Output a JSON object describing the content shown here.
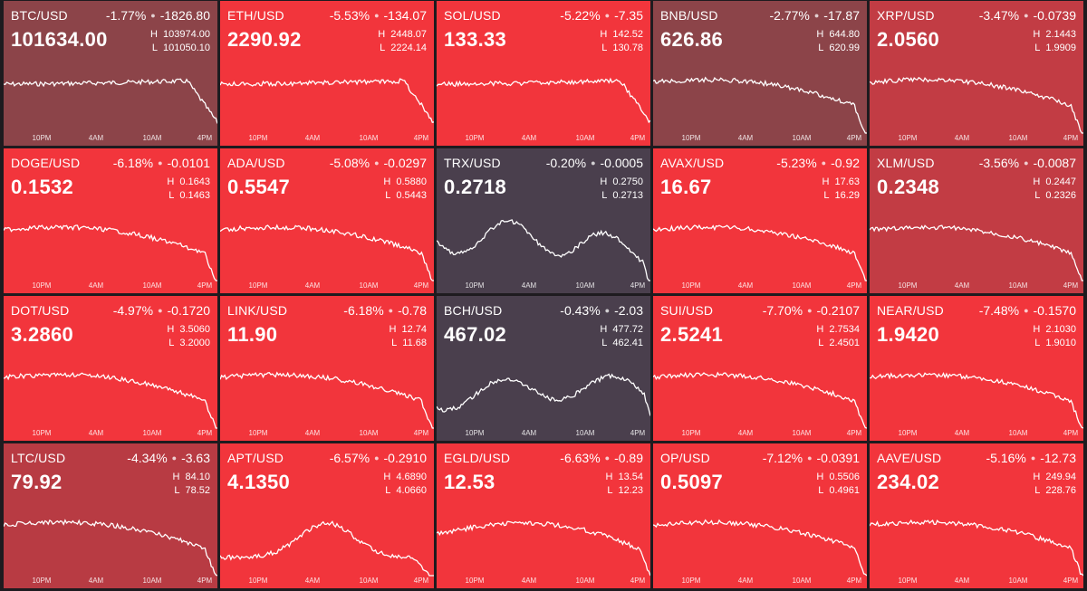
{
  "time_labels": [
    "10PM",
    "4AM",
    "10AM",
    "4PM"
  ],
  "tiles": [
    {
      "symbol": "BTC/USD",
      "pct": "-1.77%",
      "delta": "-1826.80",
      "price": "101634.00",
      "high": "103974.00",
      "low": "101050.10",
      "bg": "#8c4449",
      "trend": "late_drop"
    },
    {
      "symbol": "ETH/USD",
      "pct": "-5.53%",
      "delta": "-134.07",
      "price": "2290.92",
      "high": "2448.07",
      "low": "2224.14",
      "bg": "#f2353c",
      "trend": "late_drop"
    },
    {
      "symbol": "SOL/USD",
      "pct": "-5.22%",
      "delta": "-7.35",
      "price": "133.33",
      "high": "142.52",
      "low": "130.78",
      "bg": "#f2353c",
      "trend": "late_drop"
    },
    {
      "symbol": "BNB/USD",
      "pct": "-2.77%",
      "delta": "-17.87",
      "price": "626.86",
      "high": "644.80",
      "low": "620.99",
      "bg": "#8c4449",
      "trend": "decline"
    },
    {
      "symbol": "XRP/USD",
      "pct": "-3.47%",
      "delta": "-0.0739",
      "price": "2.0560",
      "high": "2.1443",
      "low": "1.9909",
      "bg": "#c23c44",
      "trend": "decline"
    },
    {
      "symbol": "DOGE/USD",
      "pct": "-6.18%",
      "delta": "-0.0101",
      "price": "0.1532",
      "high": "0.1643",
      "low": "0.1463",
      "bg": "#f2353c",
      "trend": "decline"
    },
    {
      "symbol": "ADA/USD",
      "pct": "-5.08%",
      "delta": "-0.0297",
      "price": "0.5547",
      "high": "0.5880",
      "low": "0.5443",
      "bg": "#f2353c",
      "trend": "decline"
    },
    {
      "symbol": "TRX/USD",
      "pct": "-0.20%",
      "delta": "-0.0005",
      "price": "0.2718",
      "high": "0.2750",
      "low": "0.2713",
      "bg": "#4a3f4d",
      "trend": "wave"
    },
    {
      "symbol": "AVAX/USD",
      "pct": "-5.23%",
      "delta": "-0.92",
      "price": "16.67",
      "high": "17.63",
      "low": "16.29",
      "bg": "#f2353c",
      "trend": "decline"
    },
    {
      "symbol": "XLM/USD",
      "pct": "-3.56%",
      "delta": "-0.0087",
      "price": "0.2348",
      "high": "0.2447",
      "low": "0.2326",
      "bg": "#c23c44",
      "trend": "decline"
    },
    {
      "symbol": "DOT/USD",
      "pct": "-4.97%",
      "delta": "-0.1720",
      "price": "3.2860",
      "high": "3.5060",
      "low": "3.2000",
      "bg": "#f2353c",
      "trend": "decline"
    },
    {
      "symbol": "LINK/USD",
      "pct": "-6.18%",
      "delta": "-0.78",
      "price": "11.90",
      "high": "12.74",
      "low": "11.68",
      "bg": "#f2353c",
      "trend": "decline"
    },
    {
      "symbol": "BCH/USD",
      "pct": "-0.43%",
      "delta": "-2.03",
      "price": "467.02",
      "high": "477.72",
      "low": "462.41",
      "bg": "#4a3f4d",
      "trend": "wave2"
    },
    {
      "symbol": "SUI/USD",
      "pct": "-7.70%",
      "delta": "-0.2107",
      "price": "2.5241",
      "high": "2.7534",
      "low": "2.4501",
      "bg": "#f2353c",
      "trend": "decline"
    },
    {
      "symbol": "NEAR/USD",
      "pct": "-7.48%",
      "delta": "-0.1570",
      "price": "1.9420",
      "high": "2.1030",
      "low": "1.9010",
      "bg": "#f2353c",
      "trend": "decline"
    },
    {
      "symbol": "LTC/USD",
      "pct": "-4.34%",
      "delta": "-3.63",
      "price": "79.92",
      "high": "84.10",
      "low": "78.52",
      "bg": "#b83b43",
      "trend": "decline"
    },
    {
      "symbol": "APT/USD",
      "pct": "-6.57%",
      "delta": "-0.2910",
      "price": "4.1350",
      "high": "4.6890",
      "low": "4.0660",
      "bg": "#f2353c",
      "trend": "hump"
    },
    {
      "symbol": "EGLD/USD",
      "pct": "-6.63%",
      "delta": "-0.89",
      "price": "12.53",
      "high": "13.54",
      "low": "12.23",
      "bg": "#f2353c",
      "trend": "arch"
    },
    {
      "symbol": "OP/USD",
      "pct": "-7.12%",
      "delta": "-0.0391",
      "price": "0.5097",
      "high": "0.5506",
      "low": "0.4961",
      "bg": "#f2353c",
      "trend": "decline"
    },
    {
      "symbol": "AAVE/USD",
      "pct": "-5.16%",
      "delta": "-12.73",
      "price": "234.02",
      "high": "249.94",
      "low": "228.76",
      "bg": "#f2353c",
      "trend": "decline"
    }
  ]
}
